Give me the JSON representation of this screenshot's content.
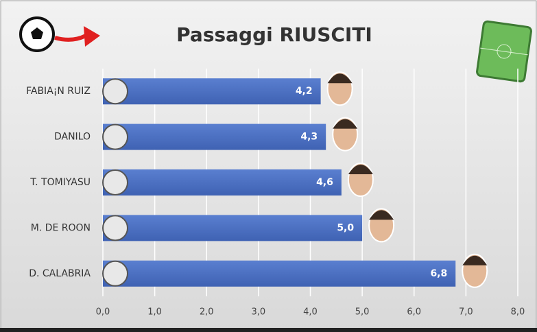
{
  "chart_data": {
    "type": "bar",
    "orientation": "horizontal",
    "title": "Passaggi RIUSCITI",
    "categories": [
      "FABIA¡N RUIZ",
      "DANILO",
      "T. TOMIYASU",
      "M. DE ROON",
      "D. CALABRIA"
    ],
    "values": [
      4.2,
      4.3,
      4.6,
      5.0,
      6.8
    ],
    "value_labels": [
      "4,2",
      "4,3",
      "4,6",
      "5,0",
      "6,8"
    ],
    "color": "#4a6fc2",
    "xlim": [
      0,
      8
    ],
    "xticks": [
      {
        "value": 0,
        "label": "0,0"
      },
      {
        "value": 1,
        "label": "1,0"
      },
      {
        "value": 2,
        "label": "2,0"
      },
      {
        "value": 3,
        "label": "3,0"
      },
      {
        "value": 4,
        "label": "4,0"
      },
      {
        "value": 5,
        "label": "5,0"
      },
      {
        "value": 6,
        "label": "6,0"
      },
      {
        "value": 7,
        "label": "7,0"
      },
      {
        "value": 8,
        "label": "8,0"
      }
    ],
    "grid": true
  }
}
